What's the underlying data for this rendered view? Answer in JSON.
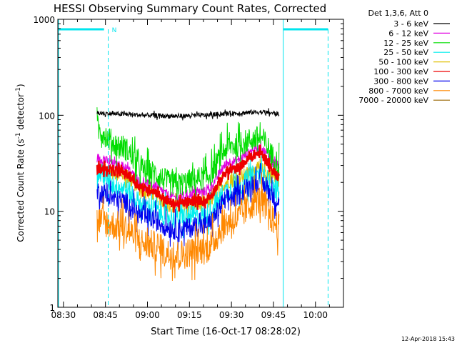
{
  "chart_data": {
    "type": "line",
    "title": "HESSI Observing Summary Count Rates, Corrected",
    "xlabel": "Start Time (16-Oct-17 08:28:02)",
    "ylabel_prefix": "Corrected Count Rate (s",
    "ylabel_sup": "-1",
    "ylabel_mid": " detector",
    "ylabel_sup2": "-1",
    "ylabel_suffix": ")",
    "yscale": "log",
    "ylim": [
      1,
      1000
    ],
    "xlim_minutes": [
      28,
      130
    ],
    "x_ticks": [
      {
        "minute": 30,
        "label": "08:30"
      },
      {
        "minute": 45,
        "label": "08:45"
      },
      {
        "minute": 60,
        "label": "09:00"
      },
      {
        "minute": 75,
        "label": "09:15"
      },
      {
        "minute": 90,
        "label": "09:30"
      },
      {
        "minute": 105,
        "label": "09:45"
      },
      {
        "minute": 120,
        "label": "10:00"
      }
    ],
    "y_ticks": [
      {
        "value": 1,
        "label": "1"
      },
      {
        "value": 10,
        "label": "10"
      },
      {
        "value": 100,
        "label": "100"
      },
      {
        "value": 1000,
        "label": "1000"
      }
    ],
    "legend_title": "Det 1,3,6, Att 0",
    "legend_placement": "right, outside plot",
    "footer": "12-Apr-2018 15:43",
    "eclipse_markers": [
      {
        "start_min": 28,
        "end_min": 44.5,
        "night_end": 46.0,
        "label": "N"
      },
      {
        "start_min": 108.5,
        "end_min": 124.5,
        "day_line": 108.5
      }
    ],
    "series": [
      {
        "name": "3 - 6 keV",
        "color": "#000000",
        "x_min": [
          42,
          50,
          60,
          70,
          80,
          90,
          100,
          107
        ],
        "values": [
          105,
          103,
          100,
          98,
          100,
          105,
          108,
          104
        ]
      },
      {
        "name": "6 - 12 keV",
        "color": "#e000e0",
        "x_min": [
          42,
          50,
          60,
          70,
          80,
          90,
          100,
          107
        ],
        "values": [
          36,
          30,
          19,
          14,
          16,
          33,
          45,
          30
        ]
      },
      {
        "name": "12 - 25 keV",
        "color": "#00dd00",
        "x_min": [
          42,
          50,
          60,
          70,
          80,
          90,
          100,
          107
        ],
        "values": [
          70,
          48,
          26,
          19,
          22,
          48,
          58,
          32
        ]
      },
      {
        "name": "25 - 50 keV",
        "color": "#00eeee",
        "x_min": [
          42,
          50,
          60,
          70,
          80,
          90,
          100,
          107
        ],
        "values": [
          25,
          18,
          11,
          8.5,
          9,
          17,
          24,
          16
        ]
      },
      {
        "name": "50 - 100 keV",
        "color": "#e0c000",
        "x_min": [
          42,
          50,
          60,
          70,
          80,
          90,
          100,
          107
        ],
        "values": [
          28,
          25,
          16,
          11,
          12,
          21,
          27,
          22
        ]
      },
      {
        "name": "100 - 300 keV",
        "color": "#ee0000",
        "x_min": [
          42,
          50,
          60,
          70,
          80,
          90,
          100,
          107
        ],
        "values": [
          28,
          26,
          17,
          12,
          13,
          27,
          40,
          23
        ]
      },
      {
        "name": "300 - 800 keV",
        "color": "#0000ee",
        "x_min": [
          42,
          50,
          60,
          70,
          80,
          90,
          100,
          107
        ],
        "values": [
          16,
          13,
          8.5,
          6.5,
          7,
          14,
          20,
          13
        ]
      },
      {
        "name": "800 - 7000 keV",
        "color": "#ff8800",
        "x_min": [
          42,
          50,
          60,
          70,
          80,
          90,
          100,
          107
        ],
        "values": [
          8,
          7,
          4.5,
          3.5,
          4,
          8,
          13,
          7
        ]
      },
      {
        "name": "7000 - 20000 keV",
        "color": "#996600",
        "x_min": [],
        "values": []
      }
    ]
  }
}
